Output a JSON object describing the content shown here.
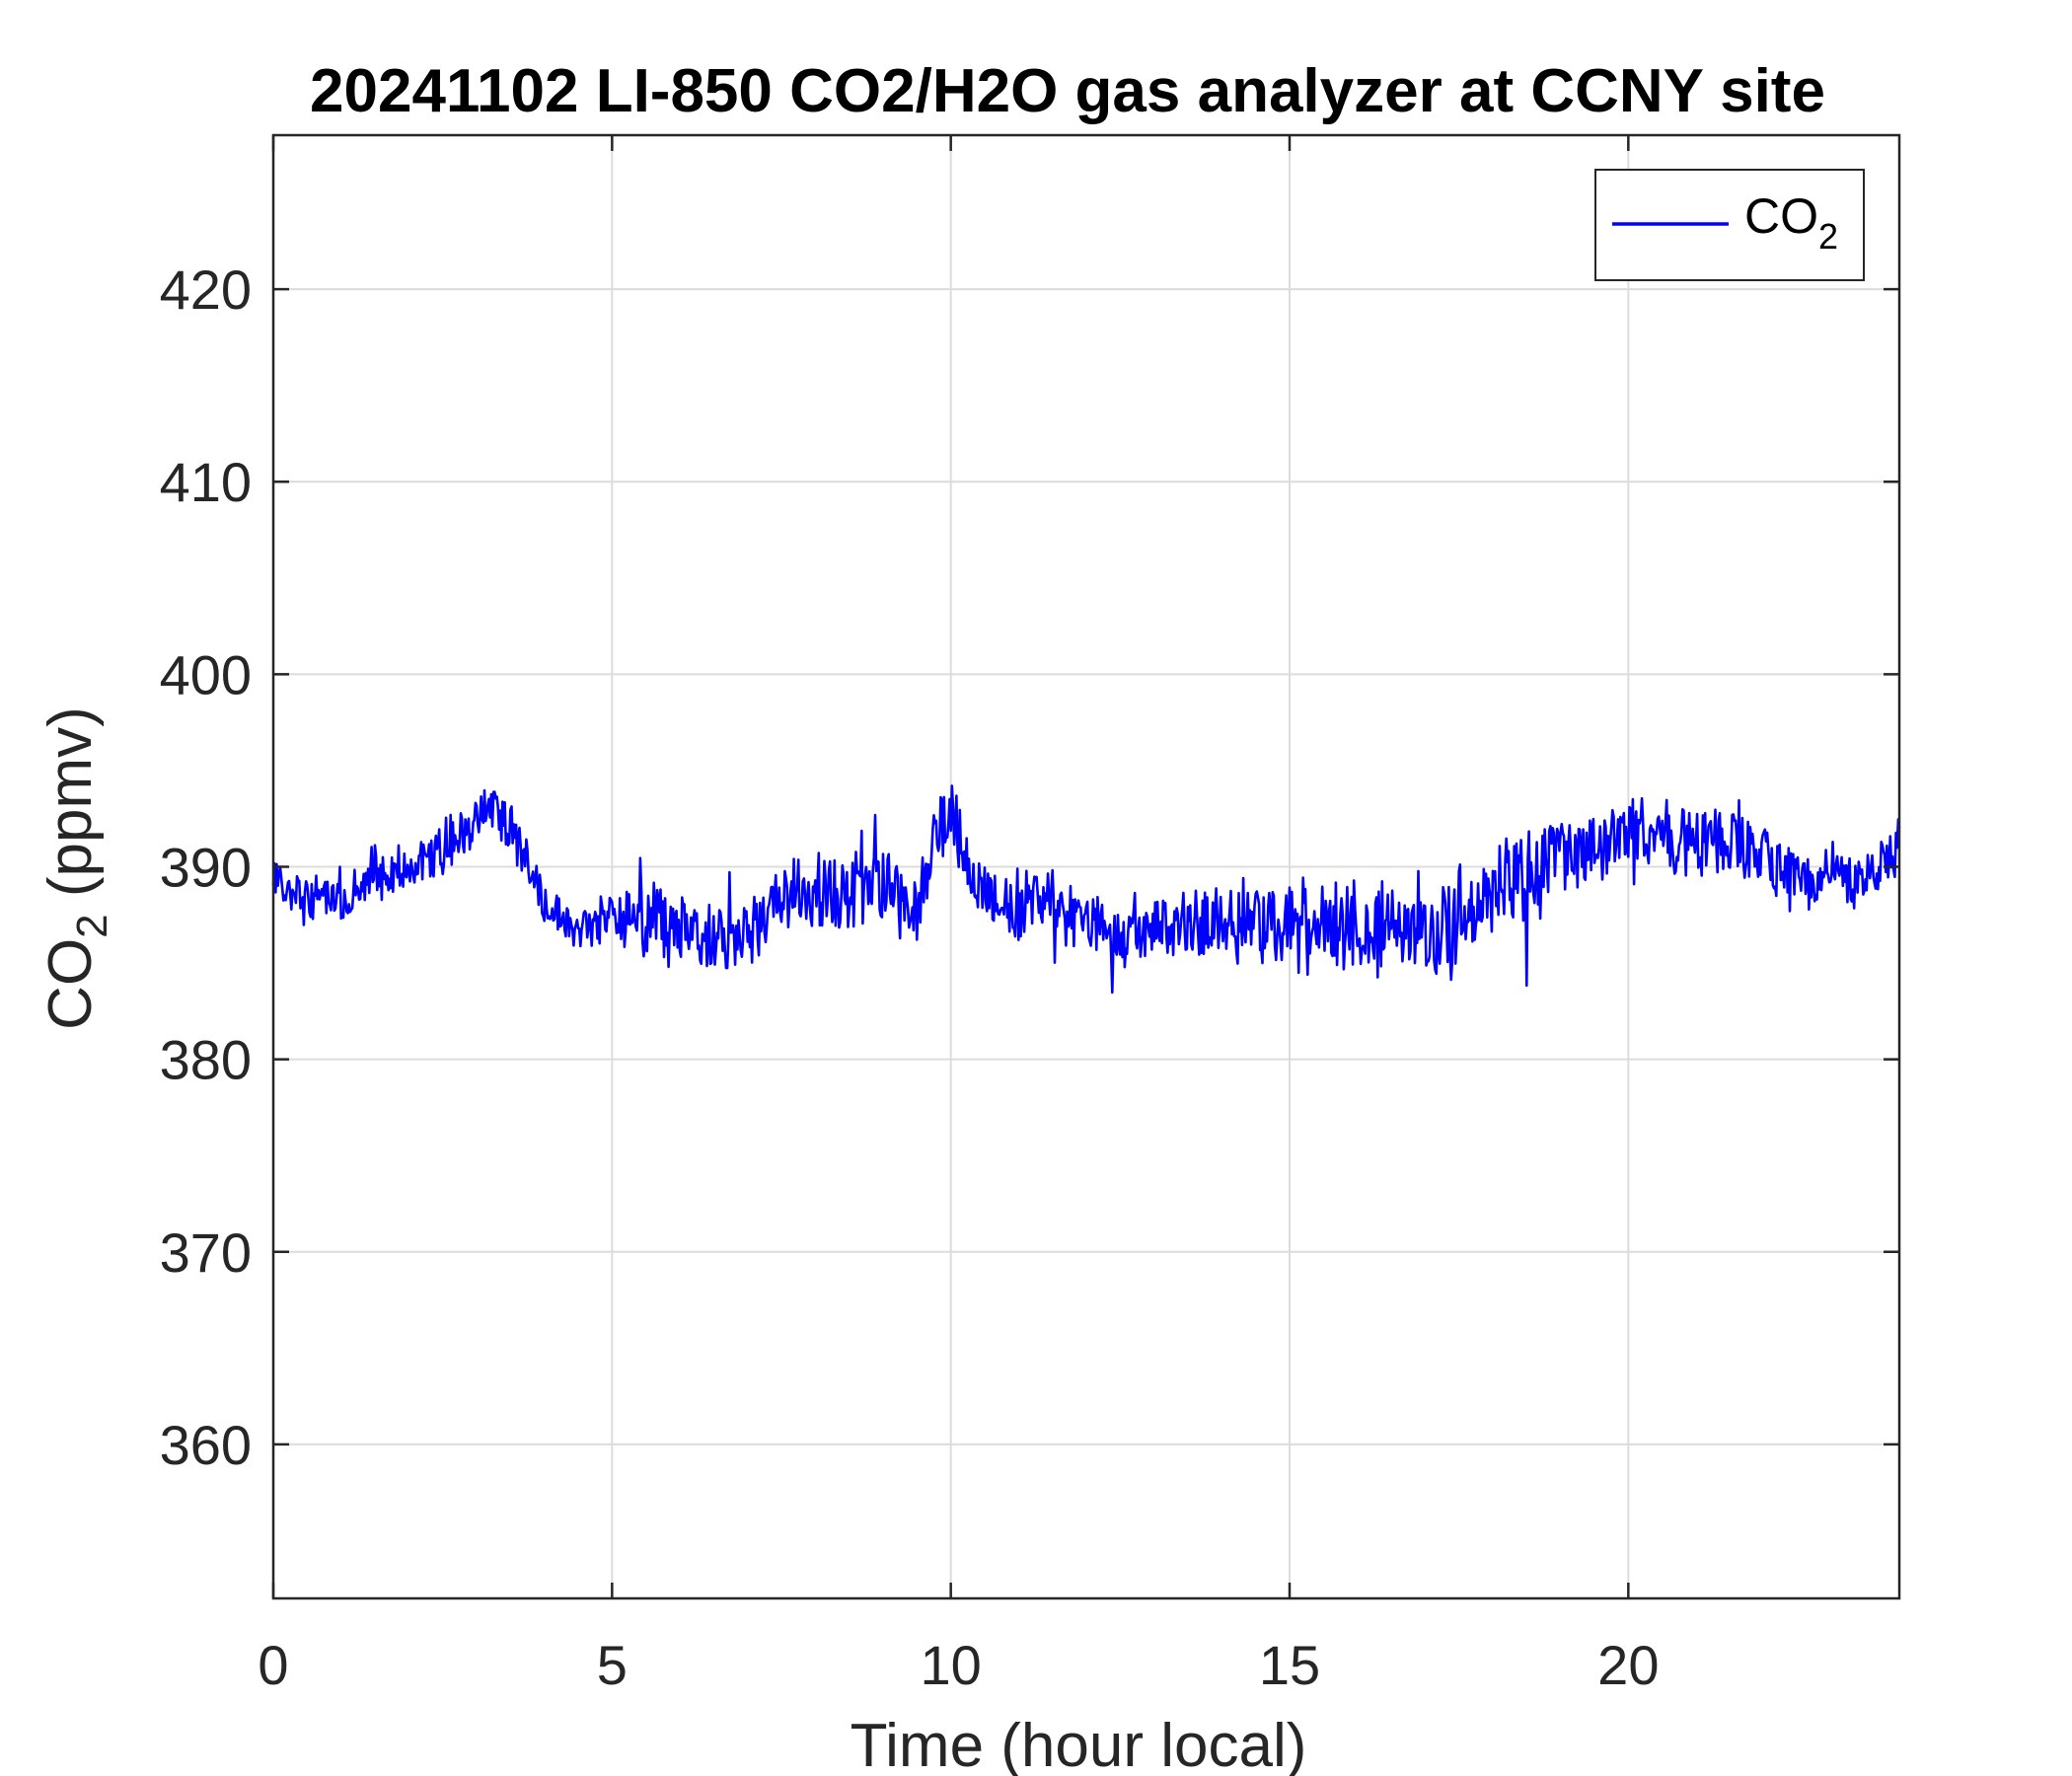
{
  "chart_data": {
    "type": "line",
    "title": "20241102 LI-850 CO2/H2O gas analyzer at CCNY site",
    "xlabel": "Time (hour local)",
    "ylabel": {
      "base": "CO",
      "sub": "2",
      "rest": " (ppmv)"
    },
    "xlim": [
      0,
      24
    ],
    "ylim": [
      352,
      428
    ],
    "xticks": [
      0,
      5,
      10,
      15,
      20
    ],
    "yticks": [
      360,
      370,
      380,
      390,
      400,
      410,
      420
    ],
    "grid": true,
    "legend": {
      "position": "top-right",
      "base": "CO",
      "sub": "2"
    },
    "series": [
      {
        "name": "CO2",
        "color": "#0000ff",
        "x": [
          0,
          0.5,
          1,
          1.5,
          2,
          2.5,
          3,
          3.25,
          3.5,
          4,
          4.5,
          5,
          5.5,
          6,
          6.5,
          7,
          7.5,
          8,
          8.5,
          9,
          9.5,
          9.85,
          10.5,
          11,
          11.5,
          12,
          12.5,
          13,
          13.5,
          14,
          14.5,
          15,
          15.5,
          16,
          16.5,
          17,
          17.5,
          18,
          18.5,
          19,
          19.5,
          20,
          20.5,
          21,
          21.5,
          22,
          22.5,
          23,
          23.5,
          24
        ],
        "y": [
          389,
          388.5,
          388.5,
          389.5,
          390,
          391,
          392.5,
          393.5,
          392,
          388,
          386.5,
          387.5,
          387.5,
          386.5,
          386.5,
          386,
          388.5,
          389,
          388.5,
          389,
          388,
          393,
          388.5,
          388,
          388.5,
          387,
          386.5,
          386.5,
          387,
          387,
          387.5,
          387,
          387,
          386.5,
          387,
          387,
          387.5,
          388.5,
          389.5,
          390.5,
          391,
          392,
          391.5,
          391.5,
          391.5,
          390.5,
          389.5,
          389.5,
          389,
          391
        ],
        "amplitude": [
          1.5,
          1.5,
          1.5,
          1.5,
          1.3,
          1.5,
          1.5,
          1.5,
          1.5,
          1.5,
          1.2,
          1.5,
          2.2,
          2.2,
          2,
          2,
          2.3,
          2.3,
          2.3,
          2.3,
          2.3,
          2.6,
          2.2,
          2.1,
          2,
          1.7,
          1.7,
          1.7,
          1.8,
          2.3,
          2.5,
          2.5,
          2.6,
          2.6,
          2.8,
          2.8,
          2.8,
          2.6,
          2.6,
          2.4,
          2.2,
          2,
          2,
          2,
          2,
          1.7,
          1.7,
          1.5,
          1.5,
          1.5
        ]
      }
    ]
  }
}
